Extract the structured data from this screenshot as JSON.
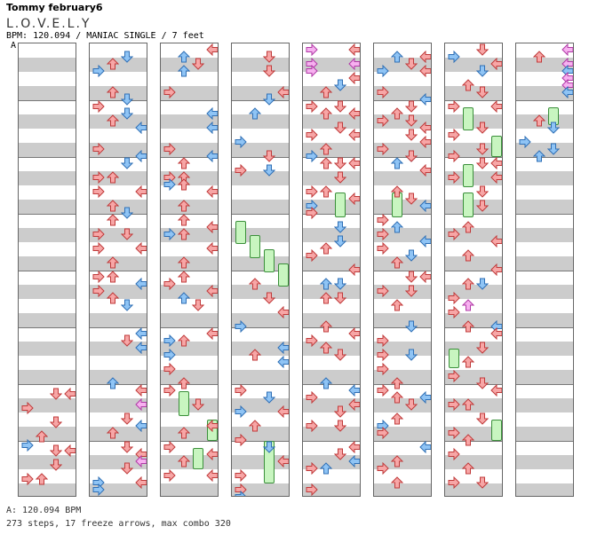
{
  "header": {
    "artist": "Tommy february6",
    "title": "L.O.V.E.L.Y",
    "info": "BPM: 120.094 / MANIAC SINGLE / 7 feet",
    "section_marker": "A"
  },
  "footer": {
    "bpm_line": "A: 120.094 BPM",
    "summary": "273 steps, 17 freeze arrows, max combo 320"
  },
  "colors": {
    "red_arrow": "#f7a6a6",
    "red_outline": "#c03a3a",
    "blue_arrow": "#8fc4f5",
    "blue_outline": "#2f6fb5",
    "pink_arrow": "#f7b0f0",
    "freeze_body": "#c8f5c0",
    "band_gray": "#cccccc"
  },
  "chart_data": {
    "type": "table",
    "columns": 8,
    "measures_per_column": 4,
    "lanes": [
      "left",
      "down",
      "up",
      "right"
    ],
    "steps": 273,
    "freeze_arrows": 17,
    "max_combo": 320,
    "bpm": 120.094,
    "difficulty": "MANIAC SINGLE",
    "feet": 7
  }
}
